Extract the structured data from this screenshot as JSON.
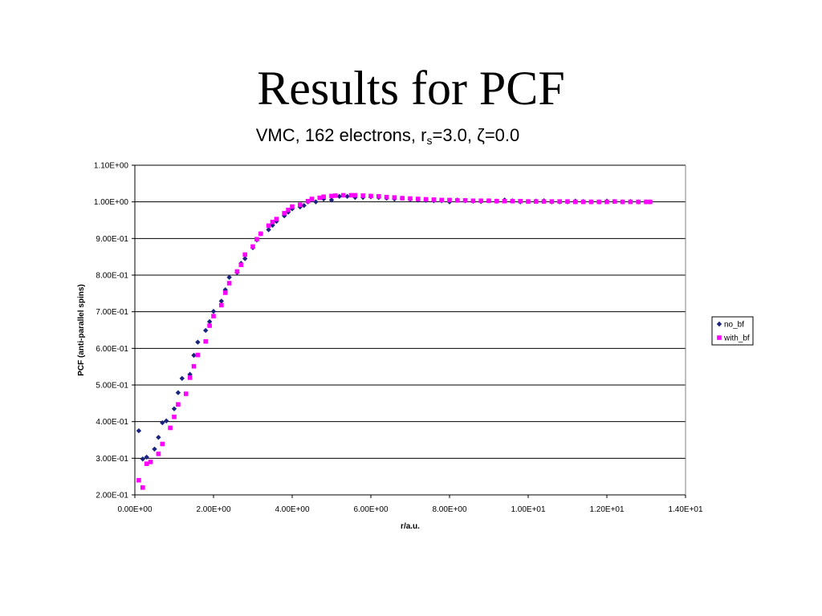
{
  "slide": {
    "title": "Results for PCF"
  },
  "chart_data": {
    "type": "scatter",
    "title_parts": {
      "pre": "VMC, 162 electrons, r",
      "sub": "s",
      "post": "=3.0, ζ=0.0"
    },
    "xlabel": "r/a.u.",
    "ylabel": "PCF (anti-parallel spins)",
    "xlim": [
      0,
      14
    ],
    "ylim": [
      0.2,
      1.1
    ],
    "x_ticks": [
      0,
      2,
      4,
      6,
      8,
      10,
      12,
      14
    ],
    "x_tick_labels": [
      "0.00E+00",
      "2.00E+00",
      "4.00E+00",
      "6.00E+00",
      "8.00E+00",
      "1.00E+01",
      "1.20E+01",
      "1.40E+01"
    ],
    "y_ticks": [
      0.2,
      0.3,
      0.4,
      0.5,
      0.6,
      0.7,
      0.8,
      0.9,
      1.0,
      1.1
    ],
    "y_tick_labels": [
      "2.00E-01",
      "3.00E-01",
      "4.00E-01",
      "5.00E-01",
      "6.00E-01",
      "7.00E-01",
      "8.00E-01",
      "9.00E-01",
      "1.00E+00",
      "1.10E+00"
    ],
    "grid": {
      "horizontal": true,
      "vertical": false
    },
    "legend": {
      "position": "right"
    },
    "series": [
      {
        "name": "no_bf",
        "marker": "diamond",
        "color": "#1a237e",
        "points": [
          [
            0.1,
            0.375
          ],
          [
            0.2,
            0.298
          ],
          [
            0.3,
            0.303
          ],
          [
            0.5,
            0.325
          ],
          [
            0.6,
            0.357
          ],
          [
            0.7,
            0.397
          ],
          [
            0.8,
            0.402
          ],
          [
            1.0,
            0.435
          ],
          [
            1.1,
            0.479
          ],
          [
            1.2,
            0.518
          ],
          [
            1.4,
            0.529
          ],
          [
            1.5,
            0.581
          ],
          [
            1.6,
            0.617
          ],
          [
            1.8,
            0.649
          ],
          [
            1.9,
            0.673
          ],
          [
            2.0,
            0.701
          ],
          [
            2.2,
            0.729
          ],
          [
            2.3,
            0.76
          ],
          [
            2.4,
            0.794
          ],
          [
            2.6,
            0.807
          ],
          [
            2.7,
            0.832
          ],
          [
            2.8,
            0.845
          ],
          [
            3.0,
            0.875
          ],
          [
            3.1,
            0.896
          ],
          [
            3.2,
            0.913
          ],
          [
            3.4,
            0.924
          ],
          [
            3.5,
            0.936
          ],
          [
            3.6,
            0.947
          ],
          [
            3.8,
            0.962
          ],
          [
            3.9,
            0.972
          ],
          [
            4.0,
            0.981
          ],
          [
            4.2,
            0.986
          ],
          [
            4.3,
            0.99
          ],
          [
            4.4,
            1.0
          ],
          [
            4.6,
            1.0
          ],
          [
            4.8,
            1.008
          ],
          [
            5.0,
            1.005
          ],
          [
            5.2,
            1.015
          ],
          [
            5.4,
            1.015
          ],
          [
            5.6,
            1.012
          ],
          [
            5.8,
            1.012
          ],
          [
            6.0,
            1.014
          ],
          [
            6.2,
            1.012
          ],
          [
            6.4,
            1.01
          ],
          [
            6.6,
            1.008
          ],
          [
            6.8,
            1.01
          ],
          [
            7.0,
            1.007
          ],
          [
            7.2,
            1.005
          ],
          [
            7.4,
            1.004
          ],
          [
            7.6,
            1.003
          ],
          [
            7.8,
            1.003
          ],
          [
            8.0,
            1.0
          ],
          [
            8.2,
            1.005
          ],
          [
            8.4,
            1.003
          ],
          [
            8.6,
            1.002
          ],
          [
            8.8,
            1.001
          ],
          [
            9.0,
            1.003
          ],
          [
            9.2,
            1.002
          ],
          [
            9.4,
            1.005
          ],
          [
            9.6,
            1.003
          ],
          [
            9.8,
            1.0
          ],
          [
            10.0,
            1.001
          ],
          [
            10.2,
            1.002
          ],
          [
            10.4,
            1.003
          ],
          [
            10.6,
            1.0
          ],
          [
            10.8,
            1.0
          ],
          [
            11.0,
            1.0
          ],
          [
            11.2,
            1.002
          ],
          [
            11.4,
            1.001
          ],
          [
            11.6,
            1.0
          ],
          [
            11.8,
            1.0
          ],
          [
            12.0,
            1.002
          ],
          [
            12.2,
            1.001
          ],
          [
            12.4,
            1.0
          ],
          [
            12.6,
            1.001
          ],
          [
            12.8,
            1.0
          ],
          [
            13.0,
            1.0
          ],
          [
            13.1,
            1.0
          ]
        ]
      },
      {
        "name": "with_bf",
        "marker": "square",
        "color": "#ff00ff",
        "points": [
          [
            0.1,
            0.24
          ],
          [
            0.2,
            0.22
          ],
          [
            0.3,
            0.285
          ],
          [
            0.4,
            0.29
          ],
          [
            0.6,
            0.312
          ],
          [
            0.7,
            0.339
          ],
          [
            0.9,
            0.383
          ],
          [
            1.0,
            0.413
          ],
          [
            1.1,
            0.447
          ],
          [
            1.3,
            0.476
          ],
          [
            1.4,
            0.52
          ],
          [
            1.5,
            0.551
          ],
          [
            1.6,
            0.582
          ],
          [
            1.8,
            0.619
          ],
          [
            1.9,
            0.662
          ],
          [
            2.0,
            0.688
          ],
          [
            2.2,
            0.718
          ],
          [
            2.3,
            0.752
          ],
          [
            2.4,
            0.778
          ],
          [
            2.6,
            0.81
          ],
          [
            2.7,
            0.828
          ],
          [
            2.8,
            0.856
          ],
          [
            3.0,
            0.878
          ],
          [
            3.1,
            0.898
          ],
          [
            3.2,
            0.913
          ],
          [
            3.4,
            0.935
          ],
          [
            3.5,
            0.945
          ],
          [
            3.6,
            0.953
          ],
          [
            3.8,
            0.969
          ],
          [
            3.9,
            0.978
          ],
          [
            4.0,
            0.987
          ],
          [
            4.2,
            0.992
          ],
          [
            4.4,
            1.002
          ],
          [
            4.5,
            1.008
          ],
          [
            4.7,
            1.011
          ],
          [
            4.8,
            1.014
          ],
          [
            5.0,
            1.016
          ],
          [
            5.1,
            1.017
          ],
          [
            5.3,
            1.018
          ],
          [
            5.5,
            1.018
          ],
          [
            5.6,
            1.018
          ],
          [
            5.8,
            1.017
          ],
          [
            6.0,
            1.016
          ],
          [
            6.2,
            1.015
          ],
          [
            6.4,
            1.013
          ],
          [
            6.6,
            1.012
          ],
          [
            6.8,
            1.01
          ],
          [
            7.0,
            1.009
          ],
          [
            7.2,
            1.008
          ],
          [
            7.4,
            1.007
          ],
          [
            7.6,
            1.006
          ],
          [
            7.8,
            1.005
          ],
          [
            8.0,
            1.005
          ],
          [
            8.2,
            1.004
          ],
          [
            8.4,
            1.004
          ],
          [
            8.6,
            1.003
          ],
          [
            8.8,
            1.003
          ],
          [
            9.0,
            1.003
          ],
          [
            9.2,
            1.002
          ],
          [
            9.4,
            1.002
          ],
          [
            9.6,
            1.002
          ],
          [
            9.8,
            1.002
          ],
          [
            10.0,
            1.001
          ],
          [
            10.2,
            1.001
          ],
          [
            10.4,
            1.001
          ],
          [
            10.6,
            1.001
          ],
          [
            10.8,
            1.001
          ],
          [
            11.0,
            1.001
          ],
          [
            11.2,
            1.0
          ],
          [
            11.4,
            1.0
          ],
          [
            11.6,
            1.0
          ],
          [
            11.8,
            1.0
          ],
          [
            12.0,
            1.0
          ],
          [
            12.2,
            1.001
          ],
          [
            12.4,
            1.0
          ],
          [
            12.6,
            1.0
          ],
          [
            12.8,
            1.0
          ],
          [
            13.0,
            1.0
          ],
          [
            13.1,
            1.0
          ]
        ]
      }
    ]
  }
}
